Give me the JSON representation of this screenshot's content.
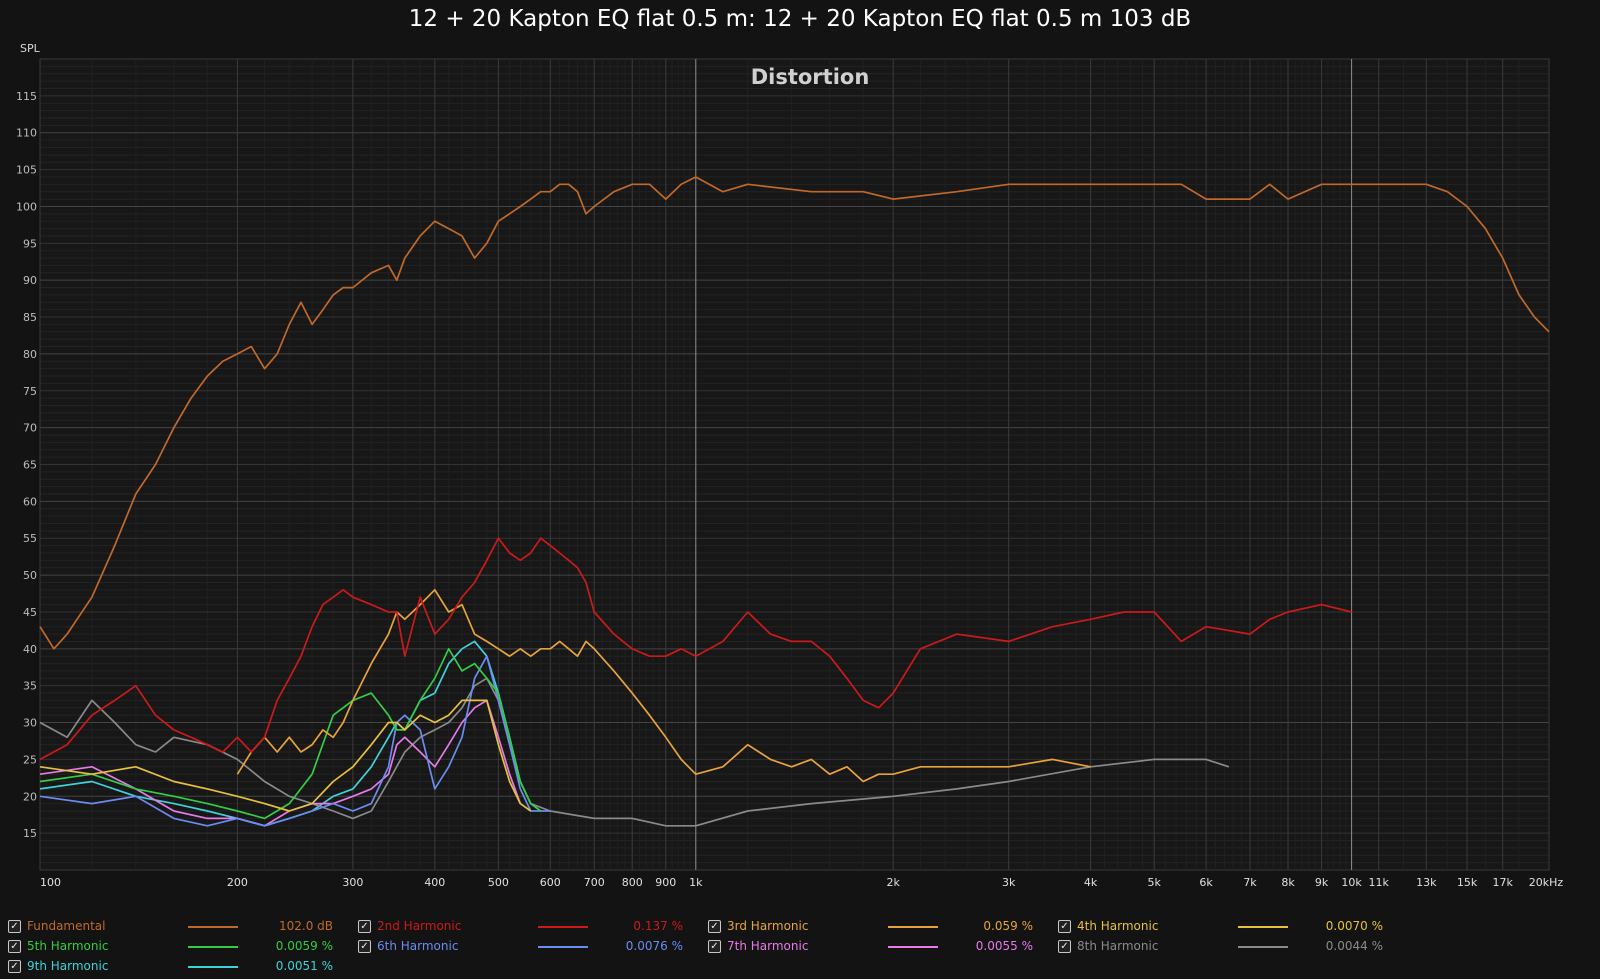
{
  "title": "12 + 20 Kapton EQ flat 0.5 m: 12 + 20 Kapton EQ flat 0.5 m 103 dB",
  "chart_data": {
    "type": "line",
    "title": "Distortion",
    "ylabel": "SPL",
    "xscale": "log",
    "xlim": [
      100,
      20000
    ],
    "ylim": [
      10,
      120
    ],
    "grid": true,
    "yticks": [
      15,
      20,
      25,
      30,
      35,
      40,
      45,
      50,
      55,
      60,
      65,
      70,
      75,
      80,
      85,
      90,
      95,
      100,
      105,
      110,
      115
    ],
    "xticks": [
      {
        "v": 100,
        "label": "100"
      },
      {
        "v": 200,
        "label": "200"
      },
      {
        "v": 300,
        "label": "300"
      },
      {
        "v": 400,
        "label": "400"
      },
      {
        "v": 500,
        "label": "500"
      },
      {
        "v": 600,
        "label": "600"
      },
      {
        "v": 700,
        "label": "700"
      },
      {
        "v": 800,
        "label": "800"
      },
      {
        "v": 900,
        "label": "900"
      },
      {
        "v": 1000,
        "label": "1k"
      },
      {
        "v": 2000,
        "label": "2k"
      },
      {
        "v": 3000,
        "label": "3k"
      },
      {
        "v": 4000,
        "label": "4k"
      },
      {
        "v": 5000,
        "label": "5k"
      },
      {
        "v": 6000,
        "label": "6k"
      },
      {
        "v": 7000,
        "label": "7k"
      },
      {
        "v": 8000,
        "label": "8k"
      },
      {
        "v": 9000,
        "label": "9k"
      },
      {
        "v": 10000,
        "label": "10k"
      },
      {
        "v": 11000,
        "label": "11k"
      },
      {
        "v": 13000,
        "label": "13k"
      },
      {
        "v": 15000,
        "label": "15k"
      },
      {
        "v": 17000,
        "label": "17k"
      },
      {
        "v": 20000,
        "label": "20kHz"
      }
    ],
    "series": [
      {
        "name": "Fundamental",
        "value": "102.0 dB",
        "color": "#c0692b",
        "x": [
          100,
          105,
          110,
          120,
          130,
          140,
          150,
          160,
          170,
          180,
          190,
          200,
          210,
          220,
          230,
          240,
          250,
          260,
          270,
          280,
          290,
          300,
          320,
          340,
          350,
          360,
          380,
          400,
          420,
          440,
          460,
          480,
          500,
          520,
          540,
          560,
          580,
          600,
          620,
          640,
          660,
          680,
          700,
          750,
          800,
          850,
          900,
          950,
          1000,
          1100,
          1200,
          1500,
          1800,
          2000,
          2500,
          3000,
          3500,
          4000,
          4500,
          5000,
          5500,
          6000,
          7000,
          7500,
          8000,
          9000,
          10000,
          11000,
          12000,
          13000,
          14000,
          15000,
          16000,
          17000,
          18000,
          19000,
          20000
        ],
        "y": [
          43,
          40,
          42,
          47,
          54,
          61,
          65,
          70,
          74,
          77,
          79,
          80,
          81,
          78,
          80,
          84,
          87,
          84,
          86,
          88,
          89,
          89,
          91,
          92,
          90,
          93,
          96,
          98,
          97,
          96,
          93,
          95,
          98,
          99,
          100,
          101,
          102,
          102,
          103,
          103,
          102,
          99,
          100,
          102,
          103,
          103,
          101,
          103,
          104,
          102,
          103,
          102,
          102,
          101,
          102,
          103,
          103,
          103,
          103,
          103,
          103,
          101,
          101,
          103,
          101,
          103,
          103,
          103,
          103,
          103,
          102,
          100,
          97,
          93,
          88,
          85,
          83
        ]
      },
      {
        "name": "2nd Harmonic",
        "value": "0.137 %",
        "color": "#cc1a1a",
        "x": [
          100,
          110,
          120,
          130,
          140,
          150,
          160,
          170,
          180,
          190,
          200,
          210,
          220,
          230,
          240,
          250,
          260,
          270,
          280,
          290,
          300,
          320,
          340,
          350,
          360,
          380,
          400,
          420,
          440,
          460,
          480,
          500,
          520,
          540,
          560,
          580,
          600,
          620,
          640,
          660,
          680,
          700,
          750,
          800,
          850,
          900,
          950,
          1000,
          1100,
          1200,
          1300,
          1400,
          1500,
          1600,
          1700,
          1800,
          1900,
          2000,
          2200,
          2500,
          3000,
          3500,
          4000,
          4500,
          5000,
          5500,
          6000,
          7000,
          7500,
          8000,
          9000,
          10000
        ],
        "y": [
          25,
          27,
          31,
          33,
          35,
          31,
          29,
          28,
          27,
          26,
          28,
          26,
          28,
          33,
          36,
          39,
          43,
          46,
          47,
          48,
          47,
          46,
          45,
          45,
          39,
          47,
          42,
          44,
          47,
          49,
          52,
          55,
          53,
          52,
          53,
          55,
          54,
          53,
          52,
          51,
          49,
          45,
          42,
          40,
          39,
          39,
          40,
          39,
          41,
          45,
          42,
          41,
          41,
          39,
          36,
          33,
          32,
          34,
          40,
          42,
          41,
          43,
          44,
          45,
          45,
          41,
          43,
          42,
          44,
          45,
          46,
          45
        ]
      },
      {
        "name": "3rd Harmonic",
        "value": "0.059 %",
        "color": "#e8a33c",
        "x": [
          200,
          210,
          220,
          230,
          240,
          250,
          260,
          270,
          280,
          290,
          300,
          320,
          340,
          350,
          360,
          380,
          400,
          420,
          440,
          460,
          480,
          500,
          520,
          540,
          560,
          580,
          600,
          620,
          640,
          660,
          680,
          700,
          750,
          800,
          850,
          900,
          950,
          1000,
          1100,
          1200,
          1300,
          1400,
          1500,
          1600,
          1700,
          1800,
          1900,
          2000,
          2200,
          2500,
          3000,
          3500,
          4000
        ],
        "y": [
          23,
          26,
          28,
          26,
          28,
          26,
          27,
          29,
          28,
          30,
          33,
          38,
          42,
          45,
          44,
          46,
          48,
          45,
          46,
          42,
          41,
          40,
          39,
          40,
          39,
          40,
          40,
          41,
          40,
          39,
          41,
          40,
          37,
          34,
          31,
          28,
          25,
          23,
          24,
          27,
          25,
          24,
          25,
          23,
          24,
          22,
          23,
          23,
          24,
          24,
          24,
          25,
          24
        ]
      },
      {
        "name": "4th Harmonic",
        "value": "0.0070 %",
        "color": "#e6c13d",
        "x": [
          100,
          120,
          140,
          160,
          180,
          200,
          220,
          240,
          260,
          280,
          300,
          320,
          340,
          350,
          360,
          380,
          400,
          420,
          440,
          460,
          480,
          500,
          520,
          540,
          560
        ],
        "y": [
          24,
          23,
          24,
          22,
          21,
          20,
          19,
          18,
          19,
          22,
          24,
          27,
          30,
          30,
          29,
          31,
          30,
          31,
          33,
          33,
          33,
          27,
          22,
          19,
          18
        ]
      },
      {
        "name": "5th Harmonic",
        "value": "0.0059 %",
        "color": "#33cc44",
        "x": [
          100,
          120,
          140,
          160,
          180,
          200,
          220,
          240,
          260,
          280,
          300,
          320,
          340,
          350,
          360,
          380,
          400,
          420,
          440,
          460,
          480,
          500,
          520,
          540,
          560,
          580
        ],
        "y": [
          22,
          23,
          21,
          20,
          19,
          18,
          17,
          19,
          23,
          31,
          33,
          34,
          31,
          29,
          29,
          33,
          36,
          40,
          37,
          38,
          36,
          34,
          28,
          22,
          19,
          18
        ]
      },
      {
        "name": "6th Harmonic",
        "value": "0.0076 %",
        "color": "#6b8cf0",
        "x": [
          100,
          120,
          140,
          160,
          180,
          200,
          220,
          240,
          260,
          280,
          300,
          320,
          340,
          350,
          360,
          380,
          400,
          420,
          440,
          460,
          480,
          500,
          520,
          540,
          560,
          600
        ],
        "y": [
          20,
          19,
          20,
          17,
          16,
          17,
          16,
          17,
          18,
          19,
          18,
          19,
          24,
          30,
          31,
          29,
          21,
          24,
          28,
          36,
          39,
          33,
          27,
          21,
          18,
          18
        ]
      },
      {
        "name": "7th Harmonic",
        "value": "0.0055 %",
        "color": "#e57ae8",
        "x": [
          100,
          120,
          140,
          160,
          180,
          200,
          220,
          240,
          260,
          280,
          300,
          320,
          340,
          350,
          360,
          380,
          400,
          420,
          440,
          460,
          480,
          500,
          520,
          540
        ],
        "y": [
          23,
          24,
          21,
          18,
          17,
          17,
          16,
          18,
          19,
          19,
          20,
          21,
          23,
          27,
          28,
          26,
          24,
          27,
          30,
          32,
          33,
          28,
          23,
          19
        ]
      },
      {
        "name": "8th Harmonic",
        "value": "0.0044 %",
        "color": "#8a8a8a",
        "x": [
          100,
          110,
          120,
          130,
          140,
          150,
          160,
          180,
          200,
          220,
          240,
          260,
          280,
          300,
          320,
          340,
          360,
          380,
          400,
          420,
          440,
          460,
          480,
          500,
          520,
          540,
          560,
          600,
          700,
          800,
          900,
          1000,
          1200,
          1500,
          2000,
          2500,
          3000,
          4000,
          5000,
          6000,
          6500
        ],
        "y": [
          30,
          28,
          33,
          30,
          27,
          26,
          28,
          27,
          25,
          22,
          20,
          19,
          18,
          17,
          18,
          22,
          26,
          28,
          29,
          30,
          32,
          35,
          36,
          33,
          27,
          22,
          19,
          18,
          17,
          17,
          16,
          16,
          18,
          19,
          20,
          21,
          22,
          24,
          25,
          25,
          24
        ]
      },
      {
        "name": "9th Harmonic",
        "value": "0.0051 %",
        "color": "#3fd1d6",
        "x": [
          100,
          120,
          140,
          160,
          180,
          200,
          220,
          240,
          260,
          280,
          300,
          320,
          340,
          350,
          360,
          380,
          400,
          420,
          440,
          460,
          480,
          500,
          520,
          540,
          560,
          580
        ],
        "y": [
          21,
          22,
          20,
          19,
          18,
          17,
          16,
          17,
          18,
          20,
          21,
          24,
          28,
          30,
          29,
          33,
          34,
          38,
          40,
          41,
          39,
          34,
          28,
          22,
          19,
          18
        ]
      }
    ]
  }
}
